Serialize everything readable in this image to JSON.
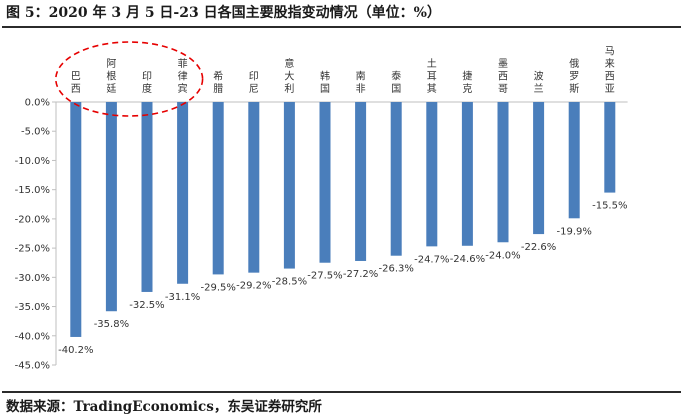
{
  "title": "图 5：2020 年 3 月 5 日-23 日各国主要股指变动情况（单位：%）",
  "source": "数据来源：TradingEconomics，东吴证券研究所",
  "colors": {
    "bar": "#4a7ebb",
    "axis": "#bfbfbf",
    "highlight": "#e60000",
    "text": "#333333"
  },
  "chart_data": {
    "type": "bar",
    "categories": [
      "巴西",
      "阿根廷",
      "印度",
      "菲律宾",
      "希腊",
      "印尼",
      "意大利",
      "韩国",
      "南非",
      "泰国",
      "土耳其",
      "捷克",
      "墨西哥",
      "波兰",
      "俄罗斯",
      "马来西亚"
    ],
    "values": [
      -40.2,
      -35.8,
      -32.5,
      -31.1,
      -29.5,
      -29.2,
      -28.5,
      -27.5,
      -27.2,
      -26.3,
      -24.7,
      -24.6,
      -24.0,
      -22.6,
      -19.9,
      -15.5
    ],
    "value_labels": [
      "-40.2%",
      "-35.8%",
      "-32.5%",
      "-31.1%",
      "-29.5%",
      "-29.2%",
      "-28.5%",
      "-27.5%",
      "-27.2%",
      "-26.3%",
      "-24.7%",
      "-24.6%",
      "-24.0%",
      "-22.6%",
      "-19.9%",
      "-15.5%"
    ],
    "yticks": [
      "0.0%",
      "-5.0%",
      "-10.0%",
      "-15.0%",
      "-20.0%",
      "-25.0%",
      "-30.0%",
      "-35.0%",
      "-40.0%",
      "-45.0%"
    ],
    "ylim": [
      -45,
      0
    ],
    "grid": false,
    "legend": "none",
    "xlabel": "",
    "ylabel": "",
    "highlighted_categories": [
      "巴西",
      "阿根廷",
      "印度",
      "菲律宾"
    ]
  }
}
